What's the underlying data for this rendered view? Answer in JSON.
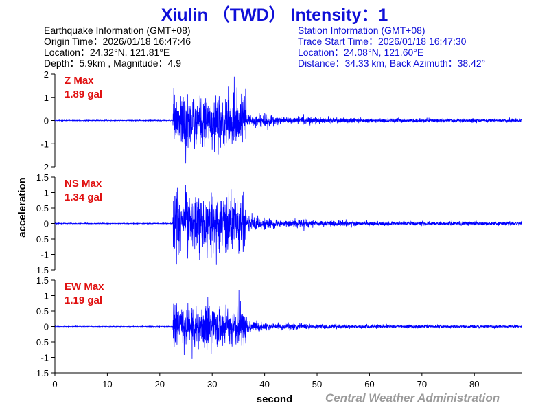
{
  "header": {
    "title": "Xiulin （TWD） Intensity：1"
  },
  "earthquake_info": {
    "heading": "Earthquake Information  (GMT+08)",
    "origin_time": "Origin Time：2026/01/18 16:47:46",
    "location": "Location：24.32°N, 121.81°E",
    "depth_magnitude": "Depth：5.9km , Magnitude：4.9"
  },
  "station_info": {
    "heading": "Station Information  (GMT+08)",
    "trace_start": "Trace Start Time：2026/01/18 16:47:30",
    "location": "Location：24.08°N, 121.60°E",
    "distance": "Distance：34.33 km, Back Azimuth：38.42°"
  },
  "footer": {
    "credit": "Central Weather Administration"
  },
  "colors": {
    "title": "#1010d8",
    "station_text": "#1010d8",
    "trace": "#0000ff",
    "max_label": "#e01010",
    "credit": "#9a9a9a"
  },
  "chart_data": {
    "type": "line",
    "xlabel": "second",
    "ylabel": "acceleration",
    "xlim": [
      0,
      89
    ],
    "xticks": [
      0,
      10,
      20,
      30,
      40,
      50,
      60,
      70,
      80
    ],
    "onset_s": 22.5,
    "panels": [
      {
        "component": "Z",
        "max_label": "Z Max",
        "max_value": "1.89 gal",
        "ylim": [
          -2,
          2
        ],
        "yticks": [
          2,
          1,
          0,
          -1,
          -2
        ],
        "peak": 1.89
      },
      {
        "component": "NS",
        "max_label": "NS Max",
        "max_value": "1.34 gal",
        "ylim": [
          -1.5,
          1.5
        ],
        "yticks": [
          1.5,
          1,
          0.5,
          0,
          -0.5,
          -1,
          -1.5
        ],
        "peak": 1.34
      },
      {
        "component": "EW",
        "max_label": "EW Max",
        "max_value": "1.19 gal",
        "ylim": [
          -1.5,
          1.5
        ],
        "yticks": [
          1.5,
          1,
          0.5,
          0,
          -0.5,
          -1,
          -1.5
        ],
        "peak": 1.19
      }
    ]
  }
}
